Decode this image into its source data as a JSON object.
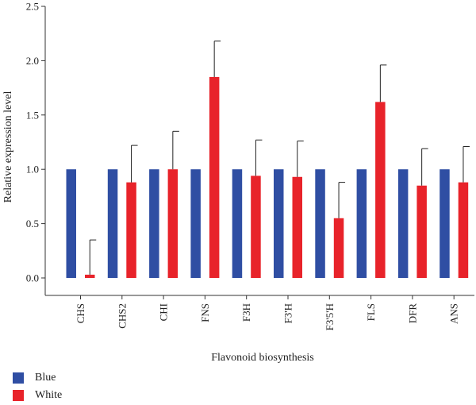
{
  "chart_data": {
    "type": "bar",
    "categories": [
      "CHS",
      "CHS2",
      "CHI",
      "FNS",
      "F3H",
      "F3'H",
      "F3'5'H",
      "FLS",
      "DFR",
      "ANS"
    ],
    "series": [
      {
        "name": "Blue",
        "color": "#2f4ea3",
        "values": [
          1.0,
          1.0,
          1.0,
          1.0,
          1.0,
          1.0,
          1.0,
          1.0,
          1.0,
          1.0
        ],
        "errors": [
          0,
          0,
          0,
          0,
          0,
          0,
          0,
          0,
          0,
          0
        ]
      },
      {
        "name": "White",
        "color": "#e8232a",
        "values": [
          0.03,
          0.88,
          1.0,
          1.85,
          0.94,
          0.93,
          0.55,
          1.62,
          0.85,
          0.88
        ],
        "errors": [
          0.32,
          0.34,
          0.35,
          0.33,
          0.33,
          0.33,
          0.33,
          0.34,
          0.34,
          0.33
        ]
      }
    ],
    "title": "",
    "xlabel": "Flavonoid biosynthesis",
    "ylabel": "Relative expression level",
    "ylim": [
      0,
      2.5
    ],
    "yticks": [
      "0.0",
      "0.5",
      "1.0",
      "1.5",
      "2.0",
      "2.5"
    ],
    "grid": false,
    "legend": "bottom-left"
  }
}
